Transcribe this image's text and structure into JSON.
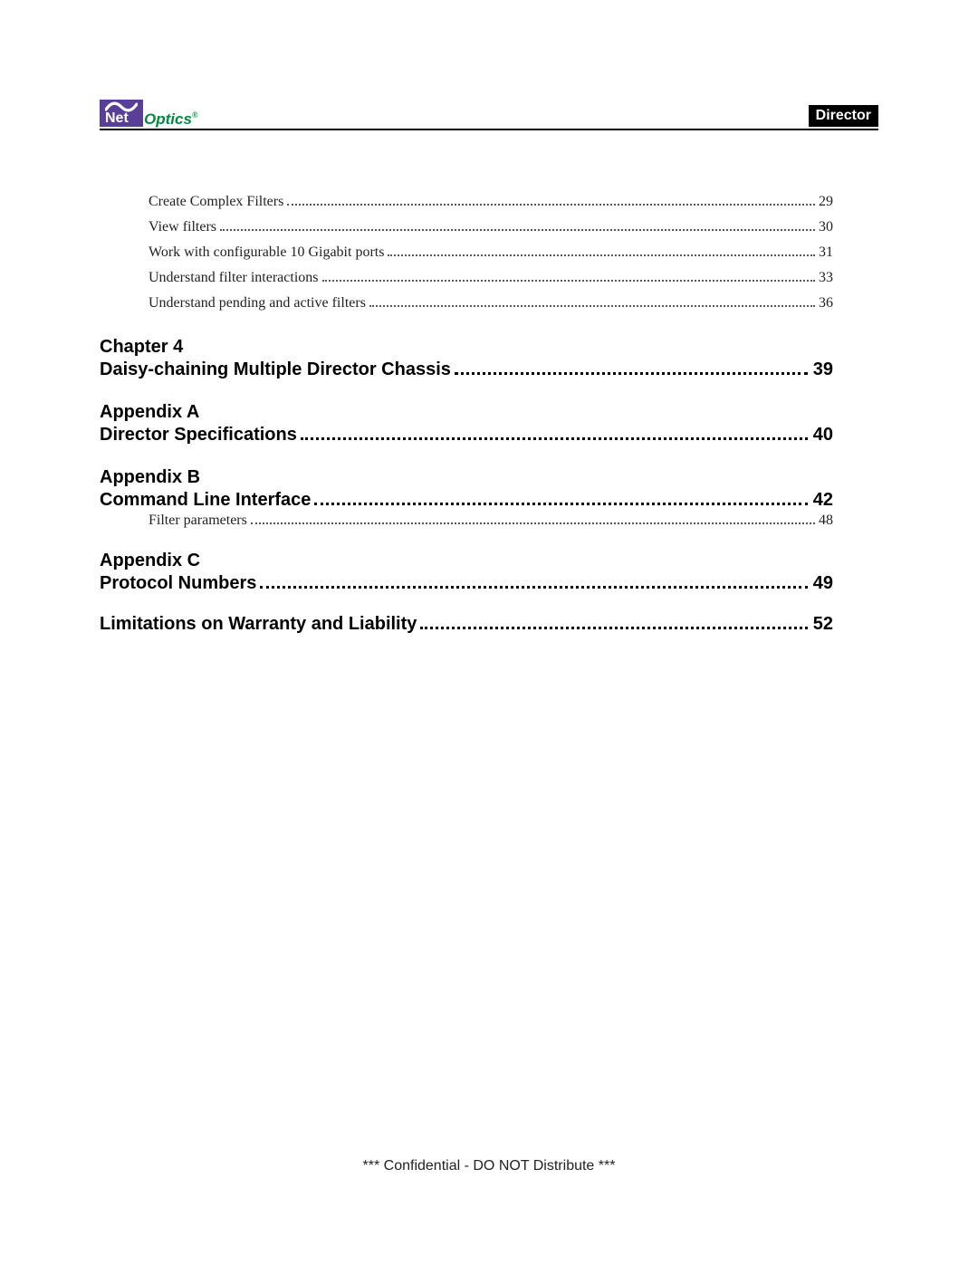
{
  "header": {
    "logo_net": "Net",
    "logo_optics": "Optics",
    "logo_reg": "®",
    "badge": "Director",
    "logo_block_color": "#5a3f99",
    "logo_optics_color": "#008a3a",
    "tilde_color": "#ffffff"
  },
  "colors": {
    "text": "#000000",
    "sub_text": "#222222",
    "leader_sub": "#555555",
    "background": "#ffffff",
    "badge_bg": "#000000",
    "badge_fg": "#ffffff"
  },
  "typography": {
    "heading_family": "Arial, Helvetica, sans-serif",
    "heading_weight": 900,
    "heading_size_pt": 15,
    "sub_family": "Georgia, 'Times New Roman', serif",
    "sub_size_pt": 12
  },
  "toc": {
    "top_sub": [
      {
        "label": "Create Complex Filters",
        "page": "29"
      },
      {
        "label": "View filters",
        "page": "30"
      },
      {
        "label": "Work with configurable 10 Gigabit ports",
        "page": "31"
      },
      {
        "label": "Understand filter interactions",
        "page": "33"
      },
      {
        "label": "Understand pending and active filters",
        "page": "36"
      }
    ],
    "sections": [
      {
        "head": "Chapter 4",
        "title": "Daisy-chaining Multiple Director Chassis",
        "page": "39",
        "sub": []
      },
      {
        "head": "Appendix A",
        "title": "Director Specifications",
        "page": "40",
        "sub": []
      },
      {
        "head": "Appendix B",
        "title": "Command Line Interface",
        "page": "42",
        "sub": [
          {
            "label": "Filter parameters",
            "page": "48"
          }
        ]
      },
      {
        "head": "Appendix C",
        "title": "Protocol Numbers",
        "page": "49",
        "sub": []
      },
      {
        "head": "",
        "title": "Limitations on Warranty and Liability",
        "page": "52",
        "sub": []
      }
    ]
  },
  "footer": "*** Confidential - DO NOT Distribute ***"
}
